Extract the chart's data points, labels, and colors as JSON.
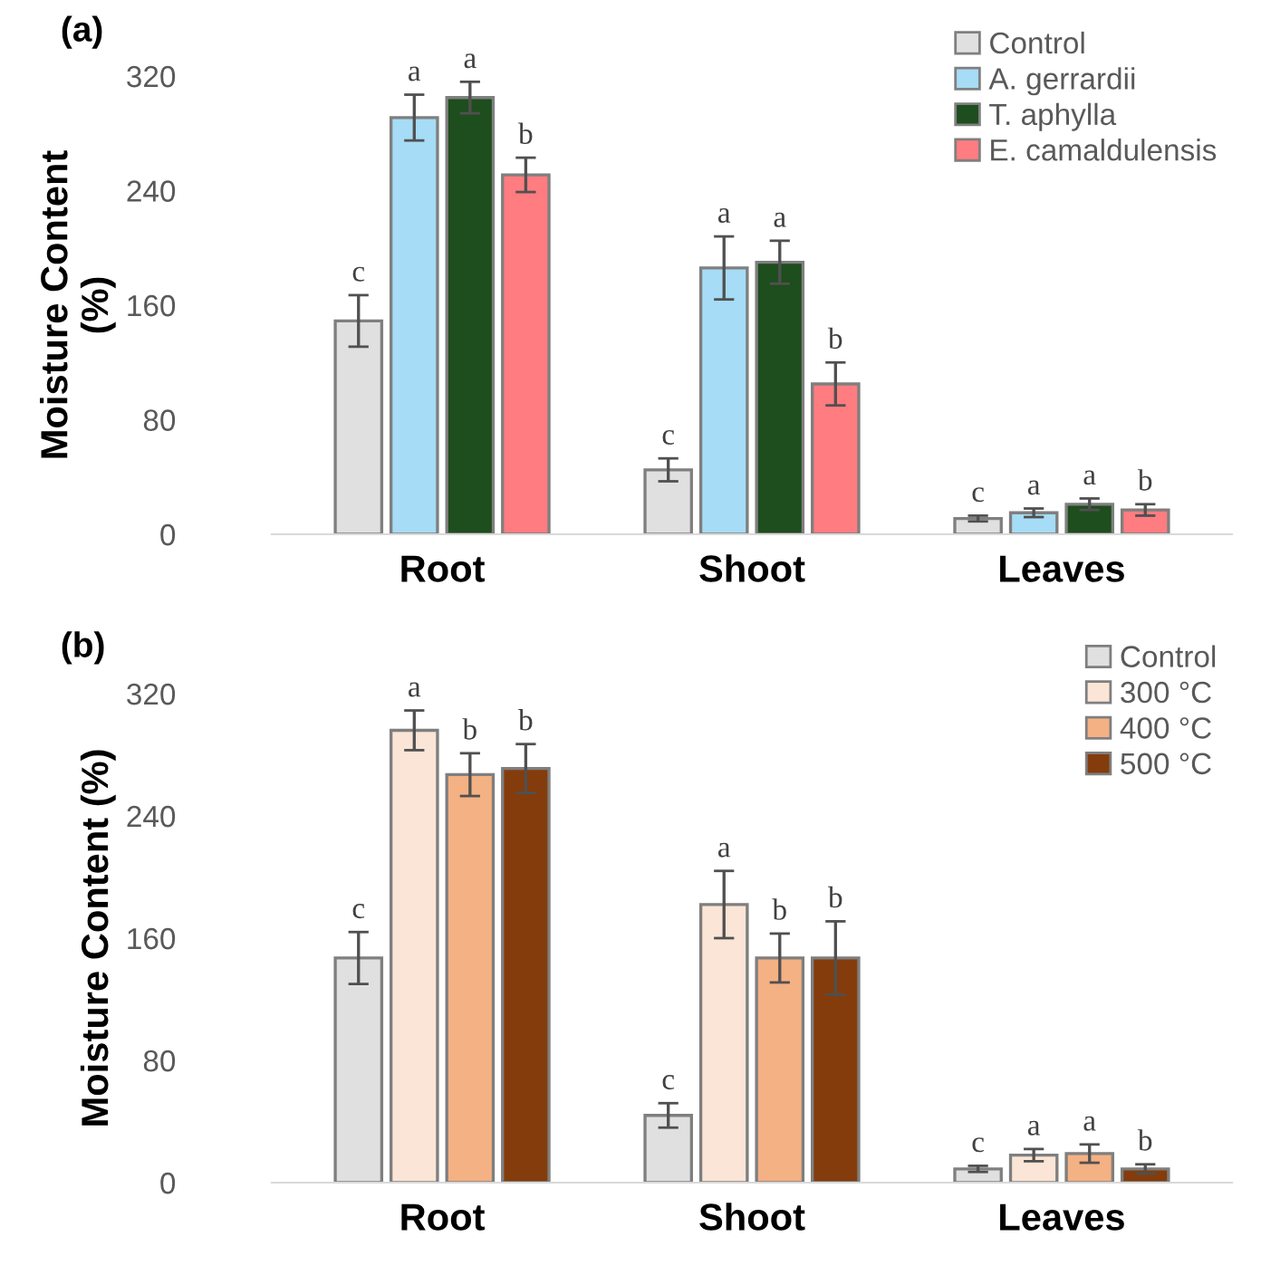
{
  "chart_data": [
    {
      "type": "bar",
      "title": "(a)",
      "ylabel": "Moisture Content\n(%)",
      "categories": [
        "Root",
        "Shoot",
        "Leaves"
      ],
      "ylim": [
        0,
        320
      ],
      "yticks": [
        0,
        80,
        160,
        240,
        320
      ],
      "grid": false,
      "legend": "top right",
      "series": [
        {
          "name": "Control",
          "color": "#e0e0e0",
          "values": [
            149,
            45,
            11
          ],
          "errors": [
            18,
            8,
            2
          ],
          "value_labels": [
            "c",
            "c",
            "c"
          ]
        },
        {
          "name": "A. gerrardii",
          "color": "#a6dcf5",
          "values": [
            291,
            186,
            15
          ],
          "errors": [
            16,
            22,
            3
          ],
          "value_labels": [
            "a",
            "a",
            "a"
          ]
        },
        {
          "name": "T. aphylla",
          "color": "#1e4d1e",
          "values": [
            305,
            190,
            21
          ],
          "errors": [
            11,
            15,
            4
          ],
          "value_labels": [
            "a",
            "a",
            "a"
          ]
        },
        {
          "name": "E. camaldulensis",
          "color": "#ff7c80",
          "values": [
            251,
            105,
            17
          ],
          "errors": [
            12,
            15,
            4
          ],
          "value_labels": [
            "b",
            "b",
            "b"
          ]
        }
      ]
    },
    {
      "type": "bar",
      "title": "(b)",
      "ylabel": "Moisture Content (%)",
      "categories": [
        "Root",
        "Shoot",
        "Leaves"
      ],
      "ylim": [
        0,
        320
      ],
      "yticks": [
        0,
        80,
        160,
        240,
        320
      ],
      "grid": false,
      "legend": "top right",
      "series": [
        {
          "name": "Control",
          "color": "#e0e0e0",
          "values": [
            147,
            44,
            9
          ],
          "errors": [
            17,
            8,
            2
          ],
          "value_labels": [
            "c",
            "c",
            "c"
          ]
        },
        {
          "name": "300 °C",
          "color": "#fbe5d6",
          "values": [
            296,
            182,
            18
          ],
          "errors": [
            13,
            22,
            4
          ],
          "value_labels": [
            "a",
            "a",
            "a"
          ]
        },
        {
          "name": "400 °C",
          "color": "#f4b183",
          "values": [
            267,
            147,
            19
          ],
          "errors": [
            14,
            16,
            6
          ],
          "value_labels": [
            "b",
            "b",
            "a"
          ]
        },
        {
          "name": "500 °C",
          "color": "#843c0c",
          "values": [
            271,
            147,
            9
          ],
          "errors": [
            16,
            24,
            3
          ],
          "value_labels": [
            "b",
            "b",
            "b"
          ]
        }
      ]
    }
  ]
}
